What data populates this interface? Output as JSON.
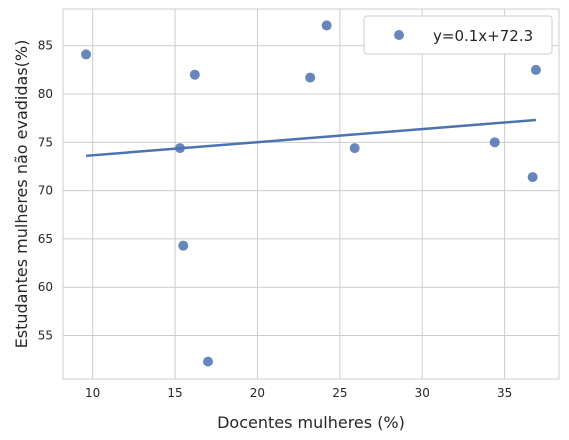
{
  "chart_data": {
    "type": "scatter",
    "xlabel": "Docentes mulheres (%)",
    "ylabel": "Estudantes mulheres não evadidas(%)",
    "xlim": [
      8.2,
      38.3
    ],
    "ylim": [
      50.5,
      88.8
    ],
    "x_ticks": [
      10,
      15,
      20,
      25,
      30,
      35
    ],
    "y_ticks": [
      55,
      60,
      65,
      70,
      75,
      80,
      85
    ],
    "grid": true,
    "legend_position": "top-right",
    "series": [
      {
        "name": "y=0.1x+72.3",
        "color": "#4c72b0",
        "points": [
          {
            "x": 9.6,
            "y": 84.1
          },
          {
            "x": 15.3,
            "y": 74.4
          },
          {
            "x": 15.5,
            "y": 64.3
          },
          {
            "x": 16.2,
            "y": 82.0
          },
          {
            "x": 17.0,
            "y": 52.3
          },
          {
            "x": 23.2,
            "y": 81.7
          },
          {
            "x": 24.2,
            "y": 87.1
          },
          {
            "x": 25.9,
            "y": 74.4
          },
          {
            "x": 34.4,
            "y": 75.0
          },
          {
            "x": 36.7,
            "y": 71.4
          },
          {
            "x": 36.9,
            "y": 82.5
          }
        ]
      }
    ],
    "regression_line": {
      "x_start": 9.6,
      "x_end": 36.9,
      "slope": 0.1357,
      "intercept": 72.3
    }
  }
}
